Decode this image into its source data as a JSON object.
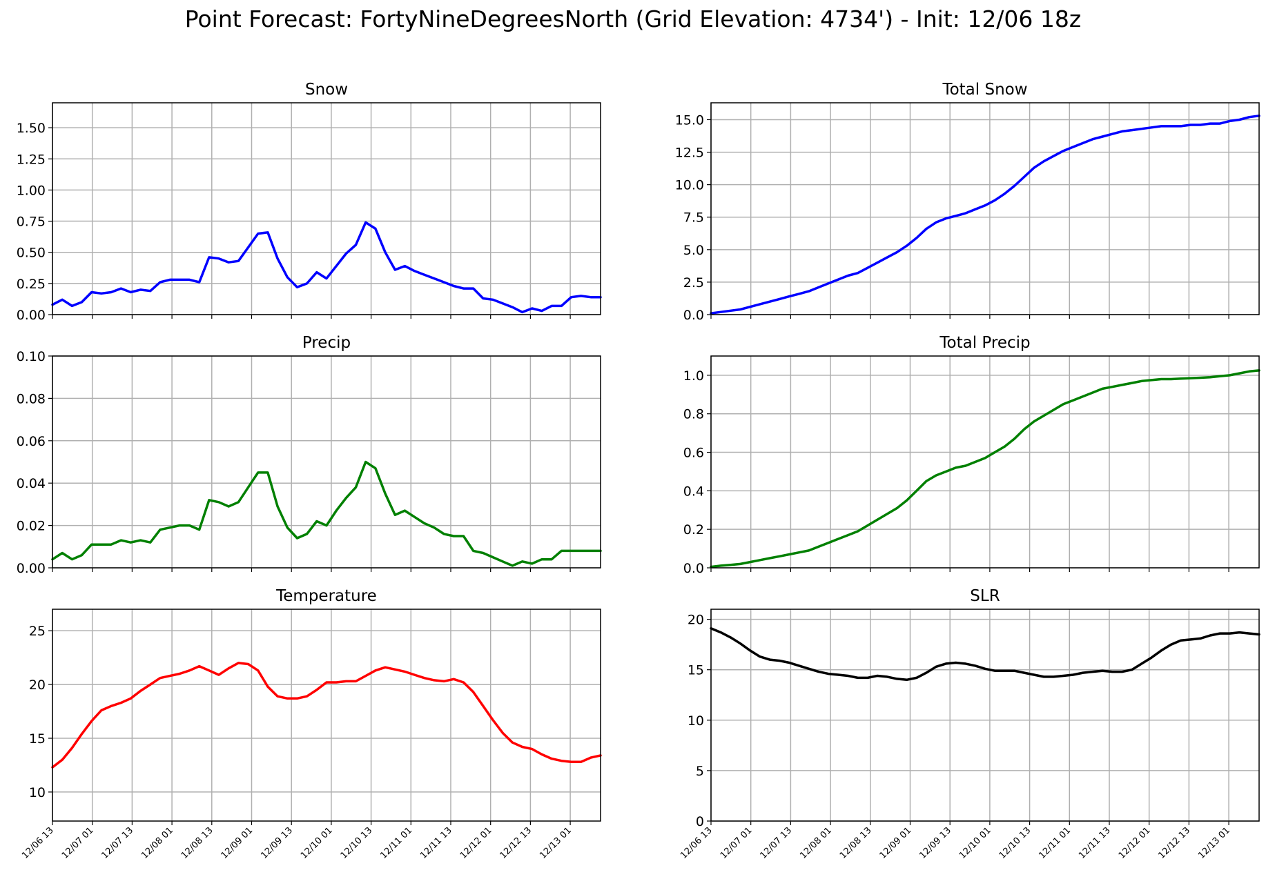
{
  "title": "Point Forecast: FortyNineDegreesNorth (Grid Elevation: 4734') - Init: 12/06 18z",
  "chart_data": [
    {
      "id": "snow",
      "type": "line",
      "title": "Snow",
      "color": "#0000ff",
      "ylim": [
        0,
        1.7
      ],
      "yticks": [
        0.0,
        0.25,
        0.5,
        0.75,
        1.0,
        1.25,
        1.5
      ],
      "ytick_labels": [
        "0.00",
        "0.25",
        "0.50",
        "0.75",
        "1.00",
        "1.25",
        "1.50"
      ],
      "xticks": [
        "12/06 13",
        "12/07 01",
        "12/07 13",
        "12/08 01",
        "12/08 13",
        "12/09 01",
        "12/09 13",
        "12/10 01",
        "12/10 13",
        "12/11 01",
        "12/11 13",
        "12/12 01",
        "12/12 13",
        "12/13 01"
      ],
      "show_xtick_labels": false,
      "grid": true,
      "values": [
        0.08,
        0.12,
        0.07,
        0.1,
        0.18,
        0.17,
        0.18,
        0.21,
        0.18,
        0.2,
        0.19,
        0.26,
        0.28,
        0.28,
        0.28,
        0.26,
        0.46,
        0.45,
        0.42,
        0.43,
        0.54,
        0.65,
        0.66,
        0.45,
        0.3,
        0.22,
        0.25,
        0.34,
        0.29,
        0.39,
        0.49,
        0.56,
        0.74,
        0.69,
        0.5,
        0.36,
        0.39,
        0.35,
        0.32,
        0.29,
        0.26,
        0.23,
        0.21,
        0.21,
        0.13,
        0.12,
        0.09,
        0.06,
        0.02,
        0.05,
        0.03,
        0.07,
        0.07,
        0.14,
        0.15,
        0.14,
        0.14
      ]
    },
    {
      "id": "total-snow",
      "type": "line",
      "title": "Total Snow",
      "color": "#0000ff",
      "ylim": [
        0,
        16.3
      ],
      "yticks": [
        0,
        2.5,
        5,
        7.5,
        10,
        12.5,
        15
      ],
      "ytick_labels": [
        "0.0",
        "2.5",
        "5.0",
        "7.5",
        "10.0",
        "12.5",
        "15.0"
      ],
      "xticks": [
        "12/06 13",
        "12/07 01",
        "12/07 13",
        "12/08 01",
        "12/08 13",
        "12/09 01",
        "12/09 13",
        "12/10 01",
        "12/10 13",
        "12/11 01",
        "12/11 13",
        "12/12 01",
        "12/12 13",
        "12/13 01"
      ],
      "show_xtick_labels": false,
      "grid": true,
      "values": [
        0.1,
        0.2,
        0.3,
        0.4,
        0.6,
        0.8,
        1.0,
        1.2,
        1.4,
        1.6,
        1.8,
        2.1,
        2.4,
        2.7,
        3.0,
        3.2,
        3.6,
        4.0,
        4.4,
        4.8,
        5.3,
        5.9,
        6.6,
        7.1,
        7.4,
        7.6,
        7.8,
        8.1,
        8.4,
        8.8,
        9.3,
        9.9,
        10.6,
        11.3,
        11.8,
        12.2,
        12.6,
        12.9,
        13.2,
        13.5,
        13.7,
        13.9,
        14.1,
        14.2,
        14.3,
        14.4,
        14.5,
        14.5,
        14.5,
        14.6,
        14.6,
        14.7,
        14.7,
        14.9,
        15.0,
        15.2,
        15.3
      ]
    },
    {
      "id": "precip",
      "type": "line",
      "title": "Precip",
      "color": "#008000",
      "ylim": [
        0,
        0.1
      ],
      "yticks": [
        0.0,
        0.02,
        0.04,
        0.06,
        0.08,
        0.1
      ],
      "ytick_labels": [
        "0.00",
        "0.02",
        "0.04",
        "0.06",
        "0.08",
        "0.10"
      ],
      "xticks": [
        "12/06 13",
        "12/07 01",
        "12/07 13",
        "12/08 01",
        "12/08 13",
        "12/09 01",
        "12/09 13",
        "12/10 01",
        "12/10 13",
        "12/11 01",
        "12/11 13",
        "12/12 01",
        "12/12 13",
        "12/13 01"
      ],
      "show_xtick_labels": false,
      "grid": true,
      "values": [
        0.004,
        0.007,
        0.004,
        0.006,
        0.011,
        0.011,
        0.011,
        0.013,
        0.012,
        0.013,
        0.012,
        0.018,
        0.019,
        0.02,
        0.02,
        0.018,
        0.032,
        0.031,
        0.029,
        0.031,
        0.038,
        0.045,
        0.045,
        0.029,
        0.019,
        0.014,
        0.016,
        0.022,
        0.02,
        0.027,
        0.033,
        0.038,
        0.05,
        0.047,
        0.035,
        0.025,
        0.027,
        0.024,
        0.021,
        0.019,
        0.016,
        0.015,
        0.015,
        0.008,
        0.007,
        0.005,
        0.003,
        0.001,
        0.003,
        0.002,
        0.004,
        0.004,
        0.008,
        0.008,
        0.008,
        0.008,
        0.008
      ]
    },
    {
      "id": "total-precip",
      "type": "line",
      "title": "Total Precip",
      "color": "#008000",
      "ylim": [
        0,
        1.1
      ],
      "yticks": [
        0.0,
        0.2,
        0.4,
        0.6,
        0.8,
        1.0
      ],
      "ytick_labels": [
        "0.0",
        "0.2",
        "0.4",
        "0.6",
        "0.8",
        "1.0"
      ],
      "xticks": [
        "12/06 13",
        "12/07 01",
        "12/07 13",
        "12/08 01",
        "12/08 13",
        "12/09 01",
        "12/09 13",
        "12/10 01",
        "12/10 13",
        "12/11 01",
        "12/11 13",
        "12/12 01",
        "12/12 13",
        "12/13 01"
      ],
      "show_xtick_labels": false,
      "grid": true,
      "values": [
        0.005,
        0.011,
        0.015,
        0.02,
        0.03,
        0.04,
        0.05,
        0.06,
        0.07,
        0.08,
        0.09,
        0.11,
        0.13,
        0.15,
        0.17,
        0.19,
        0.22,
        0.25,
        0.28,
        0.31,
        0.35,
        0.4,
        0.45,
        0.48,
        0.5,
        0.52,
        0.53,
        0.55,
        0.57,
        0.6,
        0.63,
        0.67,
        0.72,
        0.76,
        0.79,
        0.82,
        0.85,
        0.87,
        0.89,
        0.91,
        0.93,
        0.94,
        0.95,
        0.96,
        0.97,
        0.975,
        0.98,
        0.98,
        0.983,
        0.985,
        0.987,
        0.99,
        0.995,
        1.0,
        1.01,
        1.02,
        1.025
      ]
    },
    {
      "id": "temperature",
      "type": "line",
      "title": "Temperature",
      "color": "#ff0000",
      "ylim": [
        7.3,
        27
      ],
      "yticks": [
        10,
        15,
        20,
        25
      ],
      "ytick_labels": [
        "10",
        "15",
        "20",
        "25"
      ],
      "xticks": [
        "12/06 13",
        "12/07 01",
        "12/07 13",
        "12/08 01",
        "12/08 13",
        "12/09 01",
        "12/09 13",
        "12/10 01",
        "12/10 13",
        "12/11 01",
        "12/11 13",
        "12/12 01",
        "12/12 13",
        "12/13 01"
      ],
      "show_xtick_labels": true,
      "grid": true,
      "values": [
        12.3,
        13.0,
        14.1,
        15.4,
        16.6,
        17.6,
        18.0,
        18.3,
        18.7,
        19.4,
        20.0,
        20.6,
        20.8,
        21.0,
        21.3,
        21.7,
        21.3,
        20.9,
        21.5,
        22.0,
        21.9,
        21.3,
        19.8,
        18.9,
        18.7,
        18.7,
        18.9,
        19.5,
        20.2,
        20.2,
        20.3,
        20.3,
        20.8,
        21.3,
        21.6,
        21.4,
        21.2,
        20.9,
        20.6,
        20.4,
        20.3,
        20.5,
        20.2,
        19.3,
        18.0,
        16.7,
        15.5,
        14.6,
        14.2,
        14.0,
        13.5,
        13.1,
        12.9,
        12.8,
        12.8,
        13.2,
        13.4
      ]
    },
    {
      "id": "slr",
      "type": "line",
      "title": "SLR",
      "color": "#000000",
      "ylim": [
        0,
        21
      ],
      "yticks": [
        0,
        5,
        10,
        15,
        20
      ],
      "ytick_labels": [
        "0",
        "5",
        "10",
        "15",
        "20"
      ],
      "xticks": [
        "12/06 13",
        "12/07 01",
        "12/07 13",
        "12/08 01",
        "12/08 13",
        "12/09 01",
        "12/09 13",
        "12/10 01",
        "12/10 13",
        "12/11 01",
        "12/11 13",
        "12/12 01",
        "12/12 13",
        "12/13 01"
      ],
      "show_xtick_labels": true,
      "grid": true,
      "values": [
        19.1,
        18.7,
        18.2,
        17.6,
        16.9,
        16.3,
        16.0,
        15.9,
        15.7,
        15.4,
        15.1,
        14.8,
        14.6,
        14.5,
        14.4,
        14.2,
        14.2,
        14.4,
        14.3,
        14.1,
        14.0,
        14.2,
        14.7,
        15.3,
        15.6,
        15.7,
        15.6,
        15.4,
        15.1,
        14.9,
        14.9,
        14.9,
        14.7,
        14.5,
        14.3,
        14.3,
        14.4,
        14.5,
        14.7,
        14.8,
        14.9,
        14.8,
        14.8,
        15.0,
        15.6,
        16.2,
        16.9,
        17.5,
        17.9,
        18.0,
        18.1,
        18.4,
        18.6,
        18.6,
        18.7,
        18.6,
        18.5
      ]
    }
  ]
}
